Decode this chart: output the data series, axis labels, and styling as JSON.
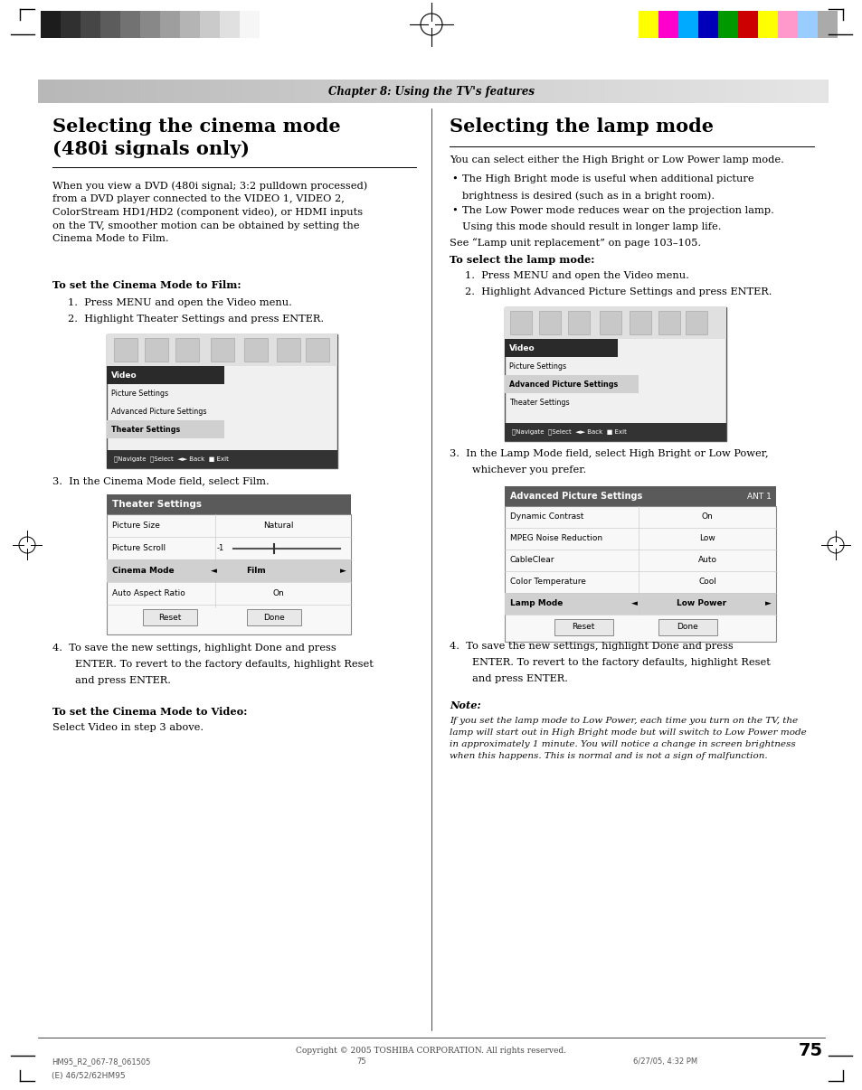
{
  "page_title": "Chapter 8: Using the TV's features",
  "left_section_title1": "Selecting the cinema mode",
  "left_section_title2": "(480i signals only)",
  "right_section_title": "Selecting the lamp mode",
  "left_body": "When you view a DVD (480i signal; 3:2 pulldown processed)\nfrom a DVD player connected to the VIDEO 1, VIDEO 2,\nColorStream HD1/HD2 (component video), or HDMI inputs\non the TV, smoother motion can be obtained by setting the\nCinema Mode to Film.",
  "right_intro": "You can select either the High Bright or Low Power lamp mode.",
  "right_bullet1": "The High Bright mode is useful when additional picture\nbrightness is desired (such as in a bright room).",
  "right_bullet2": "The Low Power mode reduces wear on the projection lamp.\nUsing this mode should result in longer lamp life.",
  "right_see": "See “Lamp unit replacement” on page 103–105.",
  "left_bold1": "To set the Cinema Mode to Film:",
  "left_steps_film": [
    "Press MENU and open the Video menu.",
    "Highlight Theater Settings and press ENTER."
  ],
  "left_step3": "In the Cinema Mode field, select Film.",
  "left_step4": "To save the new settings, highlight Done and press\n      ENTER. To revert to the factory defaults, highlight Reset\n      and press ENTER.",
  "left_bold2": "To set the Cinema Mode to Video:",
  "left_video_step": "Select Video in step 3 above.",
  "right_bold1": "To select the lamp mode:",
  "right_steps": [
    "Press MENU and open the Video menu.",
    "Highlight Advanced Picture Settings and press ENTER."
  ],
  "right_step3": "In the Lamp Mode field, select High Bright or Low Power,\n      whichever you prefer.",
  "right_step4": "To save the new settings, highlight Done and press\n      ENTER. To revert to the factory defaults, highlight Reset\n      and press ENTER.",
  "note_bold": "Note:",
  "note_text": "If you set the lamp mode to Low Power, each time you turn on the TV, the\nlamp will start out in High Bright mode but will switch to Low Power mode\nin approximately 1 minute. You will notice a change in screen brightness\nwhen this happens. This is normal and is not a sign of malfunction.",
  "footer_center": "Copyright © 2005 TOSHIBA CORPORATION. All rights reserved.",
  "footer_left1": "HM95_R2_067-78_061505",
  "footer_left2": "75",
  "footer_left3": "6/27/05, 4:32 PM",
  "footer_bottom": "(E) 46/52/62HM95",
  "page_number": "75",
  "colors_left": [
    "#1c1c1c",
    "#303030",
    "#464646",
    "#5c5c5c",
    "#727272",
    "#888888",
    "#9e9e9e",
    "#b4b4b4",
    "#cacaca",
    "#e0e0e0",
    "#f6f6f6"
  ],
  "colors_right": [
    "#ffff00",
    "#ff00cc",
    "#00aaff",
    "#0000bb",
    "#009900",
    "#cc0000",
    "#ffff00",
    "#ff99cc",
    "#99ccff",
    "#aaaaaa"
  ],
  "header_bg": "#c8c8c8",
  "table_hdr": "#6a6a6a",
  "row_hi": "#c8c8c8",
  "bg": "#ffffff"
}
